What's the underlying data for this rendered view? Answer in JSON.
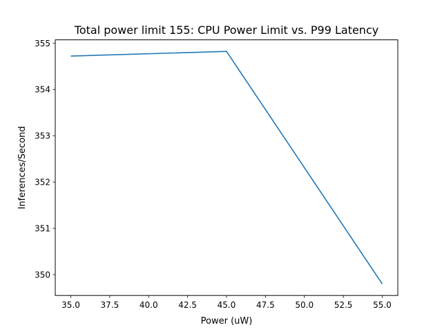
{
  "chart_data": {
    "type": "line",
    "title": "Total power limit 155: CPU Power Limit vs. P99 Latency",
    "xlabel": "Power (uW)",
    "ylabel": "Inferences/Second",
    "x": [
      35,
      45,
      55
    ],
    "series": [
      {
        "values": [
          354.72,
          354.82,
          349.8
        ],
        "color": "#1f77b4"
      }
    ],
    "xlim": [
      34.0,
      56.0
    ],
    "ylim": [
      349.55,
      355.07
    ],
    "xticks": [
      "35.0",
      "37.5",
      "40.0",
      "42.5",
      "45.0",
      "47.5",
      "50.0",
      "52.5",
      "55.0"
    ],
    "yticks": [
      "350",
      "351",
      "352",
      "353",
      "354",
      "355"
    ],
    "grid": false,
    "legend": "none"
  }
}
